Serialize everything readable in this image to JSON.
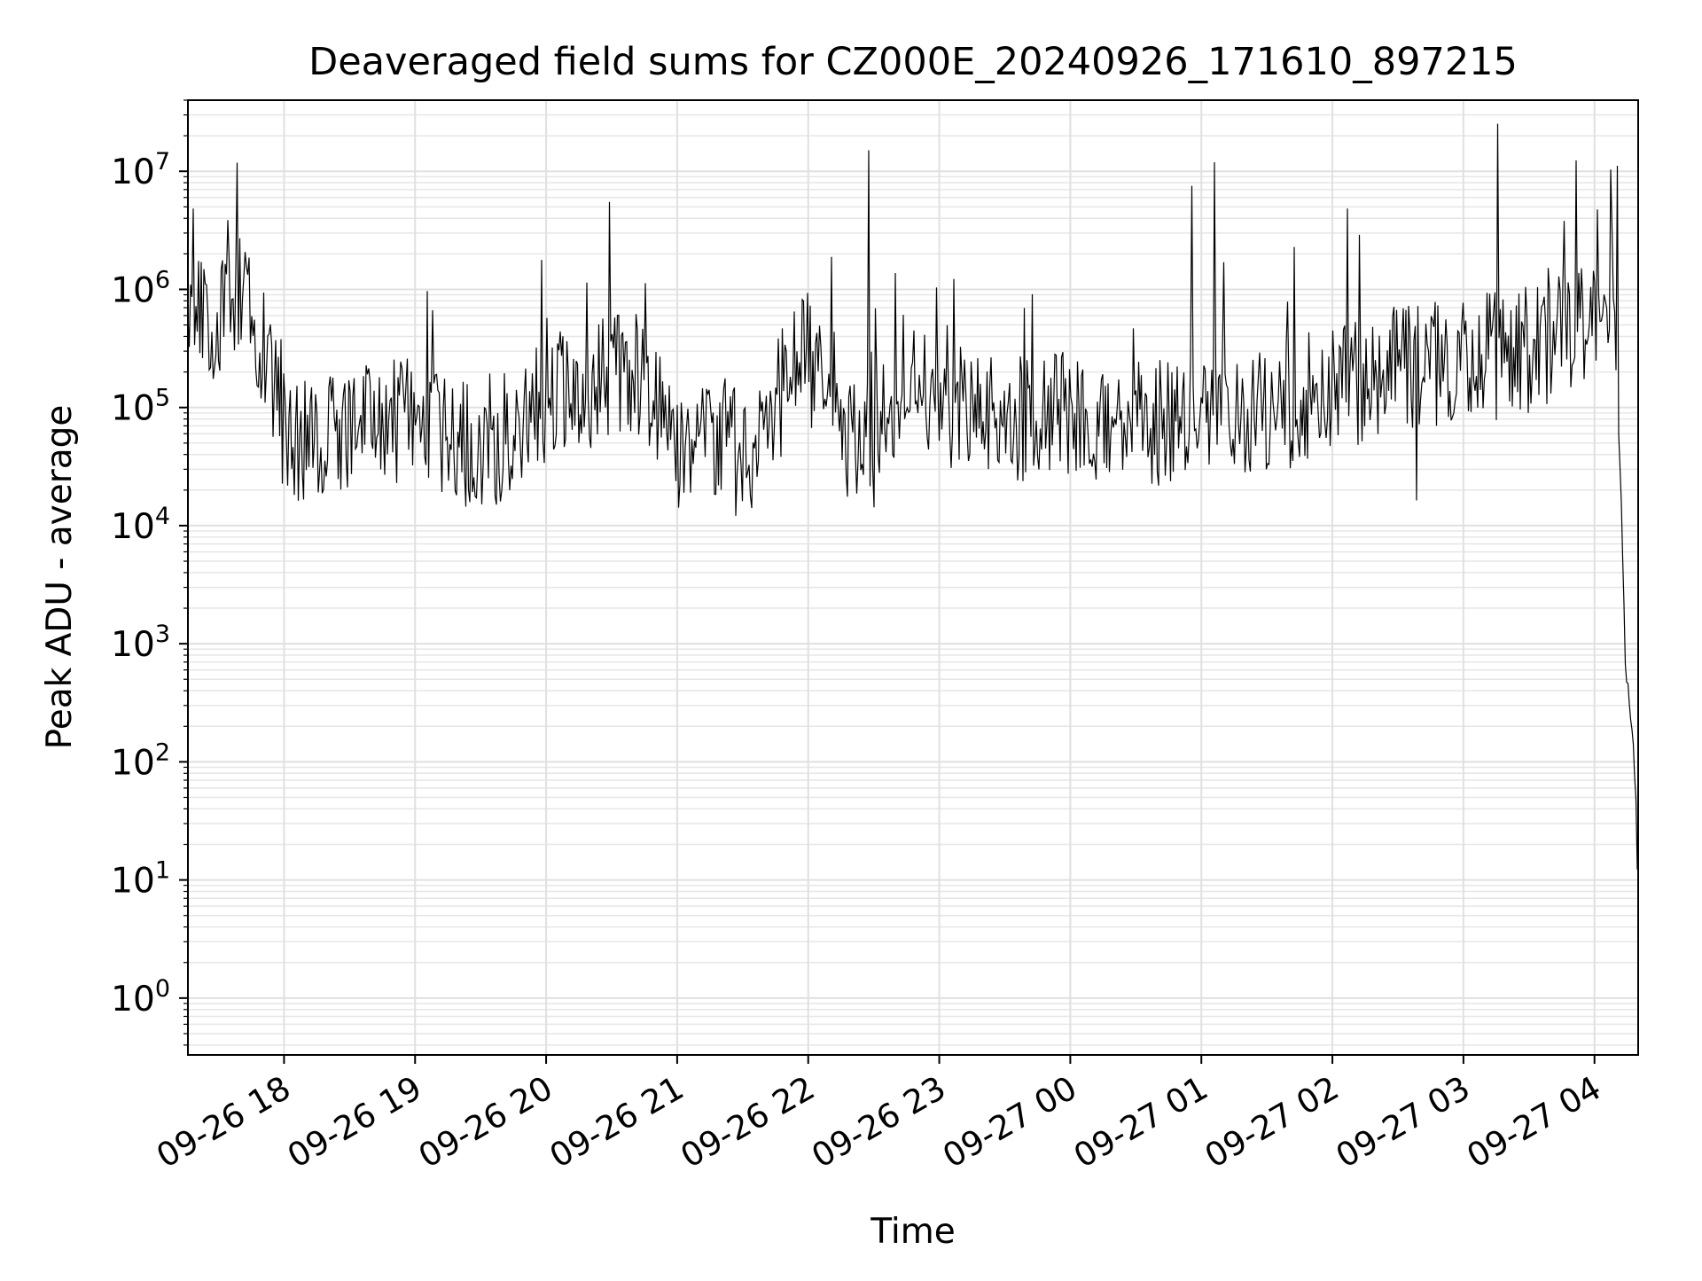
{
  "chart_data": {
    "type": "line",
    "title": "Deaveraged field sums for CZ000E_20240926_171610_897215",
    "xlabel": "Time",
    "ylabel": "Peak ADU - average",
    "yscale": "log",
    "ylim": [
      0.33,
      40000000
    ],
    "xlim": [
      "2024-09-26 17:16",
      "2024-09-27 04:20"
    ],
    "grid": true,
    "line_color": "#000000",
    "x_ticks": [
      {
        "t": "2024-09-26 18:00",
        "label": "09-26 18"
      },
      {
        "t": "2024-09-26 19:00",
        "label": "09-26 19"
      },
      {
        "t": "2024-09-26 20:00",
        "label": "09-26 20"
      },
      {
        "t": "2024-09-26 21:00",
        "label": "09-26 21"
      },
      {
        "t": "2024-09-26 22:00",
        "label": "09-26 22"
      },
      {
        "t": "2024-09-26 23:00",
        "label": "09-26 23"
      },
      {
        "t": "2024-09-27 00:00",
        "label": "09-27 00"
      },
      {
        "t": "2024-09-27 01:00",
        "label": "09-27 01"
      },
      {
        "t": "2024-09-27 02:00",
        "label": "09-27 02"
      },
      {
        "t": "2024-09-27 03:00",
        "label": "09-27 03"
      },
      {
        "t": "2024-09-27 04:00",
        "label": "09-27 04"
      }
    ],
    "y_ticks": [
      {
        "value": 1,
        "base": "10",
        "exp": "0"
      },
      {
        "value": 10,
        "base": "10",
        "exp": "1"
      },
      {
        "value": 100,
        "base": "10",
        "exp": "2"
      },
      {
        "value": 1000,
        "base": "10",
        "exp": "3"
      },
      {
        "value": 10000,
        "base": "10",
        "exp": "4"
      },
      {
        "value": 100000,
        "base": "10",
        "exp": "5"
      },
      {
        "value": 1000000,
        "base": "10",
        "exp": "6"
      },
      {
        "value": 10000000,
        "base": "10",
        "exp": "7"
      }
    ],
    "series": [
      {
        "points": [
          [
            "2024-09-26 17:16",
            400000
          ],
          [
            "2024-09-26 17:20",
            600000
          ],
          [
            "2024-09-26 17:25",
            550000
          ],
          [
            "2024-09-26 17:30",
            500000
          ],
          [
            "2024-09-26 17:34",
            800000
          ],
          [
            "2024-09-26 17:38",
            1000000
          ],
          [
            "2024-09-26 17:42",
            700000
          ],
          [
            "2024-09-26 17:46",
            600000
          ],
          [
            "2024-09-26 17:50",
            300000
          ],
          [
            "2024-09-26 17:54",
            150000
          ],
          [
            "2024-09-26 17:58",
            120000
          ],
          [
            "2024-09-26 18:00",
            60000
          ],
          [
            "2024-09-26 18:10",
            50000
          ],
          [
            "2024-09-26 18:20",
            55000
          ],
          [
            "2024-09-26 18:30",
            60000
          ],
          [
            "2024-09-26 18:40",
            70000
          ],
          [
            "2024-09-26 18:50",
            80000
          ],
          [
            "2024-09-26 19:00",
            75000
          ],
          [
            "2024-09-26 19:15",
            50000
          ],
          [
            "2024-09-26 19:30",
            45000
          ],
          [
            "2024-09-26 19:45",
            60000
          ],
          [
            "2024-09-26 20:00",
            120000
          ],
          [
            "2024-09-26 20:20",
            150000
          ],
          [
            "2024-09-26 20:40",
            200000
          ],
          [
            "2024-09-26 21:00",
            50000
          ],
          [
            "2024-09-26 21:20",
            45000
          ],
          [
            "2024-09-26 21:40",
            40000
          ],
          [
            "2024-09-26 21:50",
            200000
          ],
          [
            "2024-09-26 22:00",
            250000
          ],
          [
            "2024-09-26 22:15",
            50000
          ],
          [
            "2024-09-26 22:30",
            50000
          ],
          [
            "2024-09-26 22:45",
            200000
          ],
          [
            "2024-09-26 23:00",
            100000
          ],
          [
            "2024-09-26 23:30",
            80000
          ],
          [
            "2024-09-27 00:00",
            90000
          ],
          [
            "2024-09-27 00:30",
            70000
          ],
          [
            "2024-09-27 01:00",
            80000
          ],
          [
            "2024-09-27 01:30",
            90000
          ],
          [
            "2024-09-27 02:00",
            150000
          ],
          [
            "2024-09-27 02:30",
            200000
          ],
          [
            "2024-09-27 03:00",
            250000
          ],
          [
            "2024-09-27 03:30",
            300000
          ],
          [
            "2024-09-27 04:00",
            600000
          ],
          [
            "2024-09-27 04:08",
            1000000
          ],
          [
            "2024-09-27 04:10",
            300000
          ],
          [
            "2024-09-27 04:12",
            20000
          ],
          [
            "2024-09-27 04:14",
            800
          ],
          [
            "2024-09-27 04:16",
            300
          ],
          [
            "2024-09-27 04:18",
            100
          ],
          [
            "2024-09-27 04:19",
            40
          ],
          [
            "2024-09-27 04:20",
            6
          ]
        ]
      }
    ]
  }
}
